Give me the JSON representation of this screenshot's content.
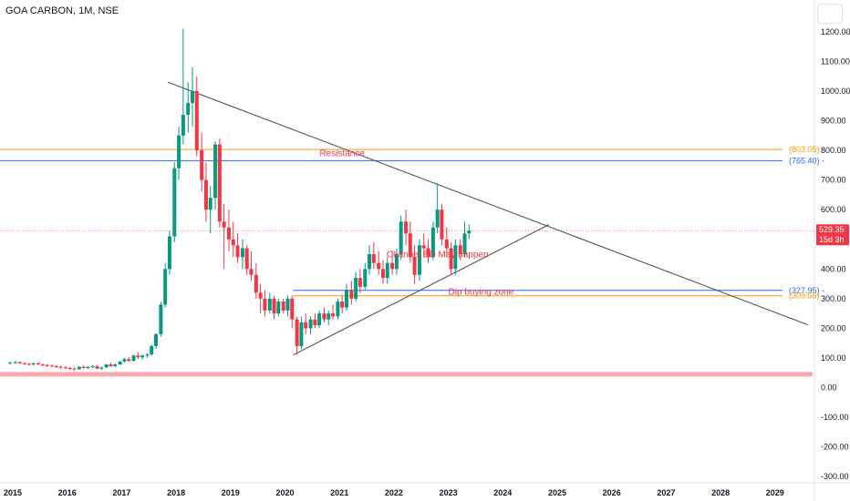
{
  "header": {
    "title": "GOA CARBON, 1M, NSE"
  },
  "colors": {
    "up": "#089981",
    "down": "#f23645",
    "resistance": "#ff9800",
    "blue": "#2962ff",
    "trend": "#555555",
    "band": "#f7a9ad"
  },
  "chart_data": {
    "type": "candlestick",
    "x_ticks": [
      "2015",
      "2016",
      "2017",
      "2018",
      "2019",
      "2020",
      "2021",
      "2022",
      "2023",
      "2024",
      "2025",
      "2026",
      "2027",
      "2028",
      "2029"
    ],
    "y_ticks": [
      "1200.00",
      "1100.00",
      "1000.00",
      "900.00",
      "800.00",
      "700.00",
      "600.00",
      "500.00",
      "400.00",
      "300.00",
      "200.00",
      "100.00",
      "0.00",
      "-100.00",
      "-200.00",
      "-300.00"
    ],
    "ylim": [
      -300,
      1240
    ],
    "levels": [
      {
        "name": "resistance",
        "value": 803.05,
        "label": "(803.05)",
        "color": "#ff9800"
      },
      {
        "name": "blue-upper",
        "value": 765.4,
        "label": "(765.40)",
        "color": "#2962ff"
      },
      {
        "name": "blue-lower",
        "value": 327.95,
        "label": "(327.95)",
        "color": "#2962ff"
      },
      {
        "name": "dip-zone",
        "value": 309.55,
        "label": "(309.55)",
        "color": "#ff9800"
      },
      {
        "name": "support-band",
        "value": 45,
        "label": "",
        "color": "#f7a9ad"
      }
    ],
    "last_price": {
      "value": 529.35,
      "label": "529.35",
      "countdown": "15d 3h"
    },
    "trendlines": [
      {
        "name": "descending",
        "from": [
          2017.85,
          1030
        ],
        "to": [
          2029.6,
          212
        ]
      },
      {
        "name": "ascending",
        "from": [
          2020.15,
          110
        ],
        "to": [
          2024.85,
          550
        ]
      }
    ],
    "annotations": [
      {
        "text": "Resistance",
        "x": 2021.05,
        "y": 780
      },
      {
        "text": "Channel BD May happen",
        "x": 2022.8,
        "y": 440
      },
      {
        "text": "Dip buying zone",
        "x": 2023.6,
        "y": 313
      }
    ],
    "series": [
      {
        "name": "GOA CARBON",
        "candles": [
          [
            2014.95,
            82,
            88,
            78,
            84
          ],
          [
            2015.05,
            84,
            90,
            80,
            86
          ],
          [
            2015.13,
            86,
            88,
            80,
            82
          ],
          [
            2015.22,
            82,
            86,
            76,
            80
          ],
          [
            2015.3,
            80,
            84,
            74,
            78
          ],
          [
            2015.38,
            78,
            84,
            74,
            82
          ],
          [
            2015.47,
            82,
            86,
            76,
            78
          ],
          [
            2015.55,
            78,
            82,
            72,
            76
          ],
          [
            2015.63,
            76,
            80,
            70,
            74
          ],
          [
            2015.72,
            74,
            78,
            68,
            72
          ],
          [
            2015.8,
            72,
            76,
            66,
            70
          ],
          [
            2015.88,
            70,
            74,
            64,
            68
          ],
          [
            2015.97,
            68,
            72,
            62,
            66
          ],
          [
            2016.05,
            66,
            70,
            60,
            64
          ],
          [
            2016.13,
            64,
            68,
            58,
            62
          ],
          [
            2016.22,
            62,
            72,
            60,
            70
          ],
          [
            2016.3,
            70,
            74,
            64,
            66
          ],
          [
            2016.38,
            66,
            72,
            62,
            70
          ],
          [
            2016.47,
            70,
            76,
            66,
            72
          ],
          [
            2016.55,
            72,
            76,
            62,
            64
          ],
          [
            2016.63,
            64,
            70,
            60,
            68
          ],
          [
            2016.72,
            68,
            80,
            66,
            78
          ],
          [
            2016.8,
            78,
            84,
            70,
            72
          ],
          [
            2016.88,
            72,
            80,
            68,
            78
          ],
          [
            2016.97,
            78,
            90,
            76,
            88
          ],
          [
            2017.05,
            88,
            100,
            84,
            96
          ],
          [
            2017.13,
            96,
            104,
            86,
            90
          ],
          [
            2017.22,
            90,
            112,
            88,
            108
          ],
          [
            2017.3,
            108,
            120,
            96,
            102
          ],
          [
            2017.38,
            102,
            112,
            94,
            108
          ],
          [
            2017.47,
            108,
            116,
            100,
            112
          ],
          [
            2017.55,
            112,
            145,
            108,
            140
          ],
          [
            2017.63,
            140,
            185,
            130,
            180
          ],
          [
            2017.72,
            180,
            290,
            170,
            280
          ],
          [
            2017.8,
            280,
            420,
            270,
            400
          ],
          [
            2017.88,
            400,
            530,
            380,
            510
          ],
          [
            2017.97,
            510,
            760,
            490,
            740
          ],
          [
            2018.05,
            740,
            880,
            700,
            850
          ],
          [
            2018.13,
            850,
            1210,
            820,
            920
          ],
          [
            2018.22,
            920,
            1030,
            860,
            960
          ],
          [
            2018.3,
            960,
            1080,
            880,
            1000
          ],
          [
            2018.38,
            1000,
            1050,
            780,
            800
          ],
          [
            2018.47,
            800,
            860,
            660,
            700
          ],
          [
            2018.55,
            700,
            760,
            560,
            600
          ],
          [
            2018.63,
            600,
            680,
            520,
            640
          ],
          [
            2018.72,
            640,
            830,
            600,
            820
          ],
          [
            2018.8,
            820,
            840,
            540,
            560
          ],
          [
            2018.88,
            560,
            620,
            400,
            540
          ],
          [
            2018.97,
            540,
            600,
            460,
            500
          ],
          [
            2019.05,
            500,
            560,
            440,
            480
          ],
          [
            2019.13,
            480,
            520,
            420,
            440
          ],
          [
            2019.22,
            440,
            500,
            400,
            470
          ],
          [
            2019.3,
            470,
            480,
            380,
            400
          ],
          [
            2019.38,
            400,
            460,
            360,
            380
          ],
          [
            2019.47,
            380,
            420,
            300,
            320
          ],
          [
            2019.55,
            320,
            350,
            250,
            300
          ],
          [
            2019.63,
            300,
            330,
            240,
            260
          ],
          [
            2019.72,
            260,
            320,
            250,
            300
          ],
          [
            2019.8,
            300,
            310,
            230,
            250
          ],
          [
            2019.88,
            250,
            300,
            240,
            290
          ],
          [
            2019.97,
            290,
            300,
            250,
            260
          ],
          [
            2020.05,
            260,
            310,
            240,
            300
          ],
          [
            2020.13,
            300,
            310,
            200,
            230
          ],
          [
            2020.22,
            230,
            240,
            110,
            140
          ],
          [
            2020.3,
            140,
            240,
            130,
            220
          ],
          [
            2020.38,
            220,
            250,
            180,
            200
          ],
          [
            2020.47,
            200,
            240,
            180,
            230
          ],
          [
            2020.55,
            230,
            250,
            200,
            210
          ],
          [
            2020.63,
            210,
            260,
            200,
            250
          ],
          [
            2020.72,
            250,
            270,
            220,
            230
          ],
          [
            2020.8,
            230,
            260,
            210,
            250
          ],
          [
            2020.88,
            250,
            280,
            230,
            240
          ],
          [
            2020.97,
            240,
            300,
            230,
            290
          ],
          [
            2021.05,
            290,
            310,
            250,
            270
          ],
          [
            2021.13,
            270,
            350,
            260,
            330
          ],
          [
            2021.22,
            330,
            360,
            280,
            300
          ],
          [
            2021.3,
            300,
            390,
            290,
            370
          ],
          [
            2021.38,
            370,
            400,
            320,
            340
          ],
          [
            2021.47,
            340,
            420,
            330,
            400
          ],
          [
            2021.55,
            400,
            480,
            380,
            450
          ],
          [
            2021.63,
            450,
            490,
            400,
            420
          ],
          [
            2021.72,
            420,
            460,
            380,
            400
          ],
          [
            2021.8,
            400,
            430,
            350,
            370
          ],
          [
            2021.88,
            370,
            440,
            350,
            420
          ],
          [
            2021.97,
            420,
            460,
            380,
            400
          ],
          [
            2022.05,
            400,
            470,
            380,
            450
          ],
          [
            2022.13,
            450,
            580,
            430,
            560
          ],
          [
            2022.22,
            560,
            600,
            480,
            520
          ],
          [
            2022.3,
            520,
            560,
            420,
            440
          ],
          [
            2022.38,
            440,
            480,
            350,
            380
          ],
          [
            2022.47,
            380,
            500,
            360,
            480
          ],
          [
            2022.55,
            480,
            520,
            440,
            470
          ],
          [
            2022.63,
            470,
            500,
            420,
            440
          ],
          [
            2022.72,
            440,
            560,
            430,
            540
          ],
          [
            2022.8,
            540,
            690,
            520,
            600
          ],
          [
            2022.88,
            600,
            620,
            480,
            500
          ],
          [
            2022.97,
            500,
            540,
            440,
            470
          ],
          [
            2023.05,
            470,
            490,
            380,
            400
          ],
          [
            2023.13,
            400,
            500,
            380,
            480
          ],
          [
            2023.22,
            480,
            500,
            430,
            450
          ],
          [
            2023.3,
            450,
            560,
            440,
            520
          ],
          [
            2023.38,
            520,
            550,
            500,
            529
          ]
        ]
      }
    ]
  }
}
